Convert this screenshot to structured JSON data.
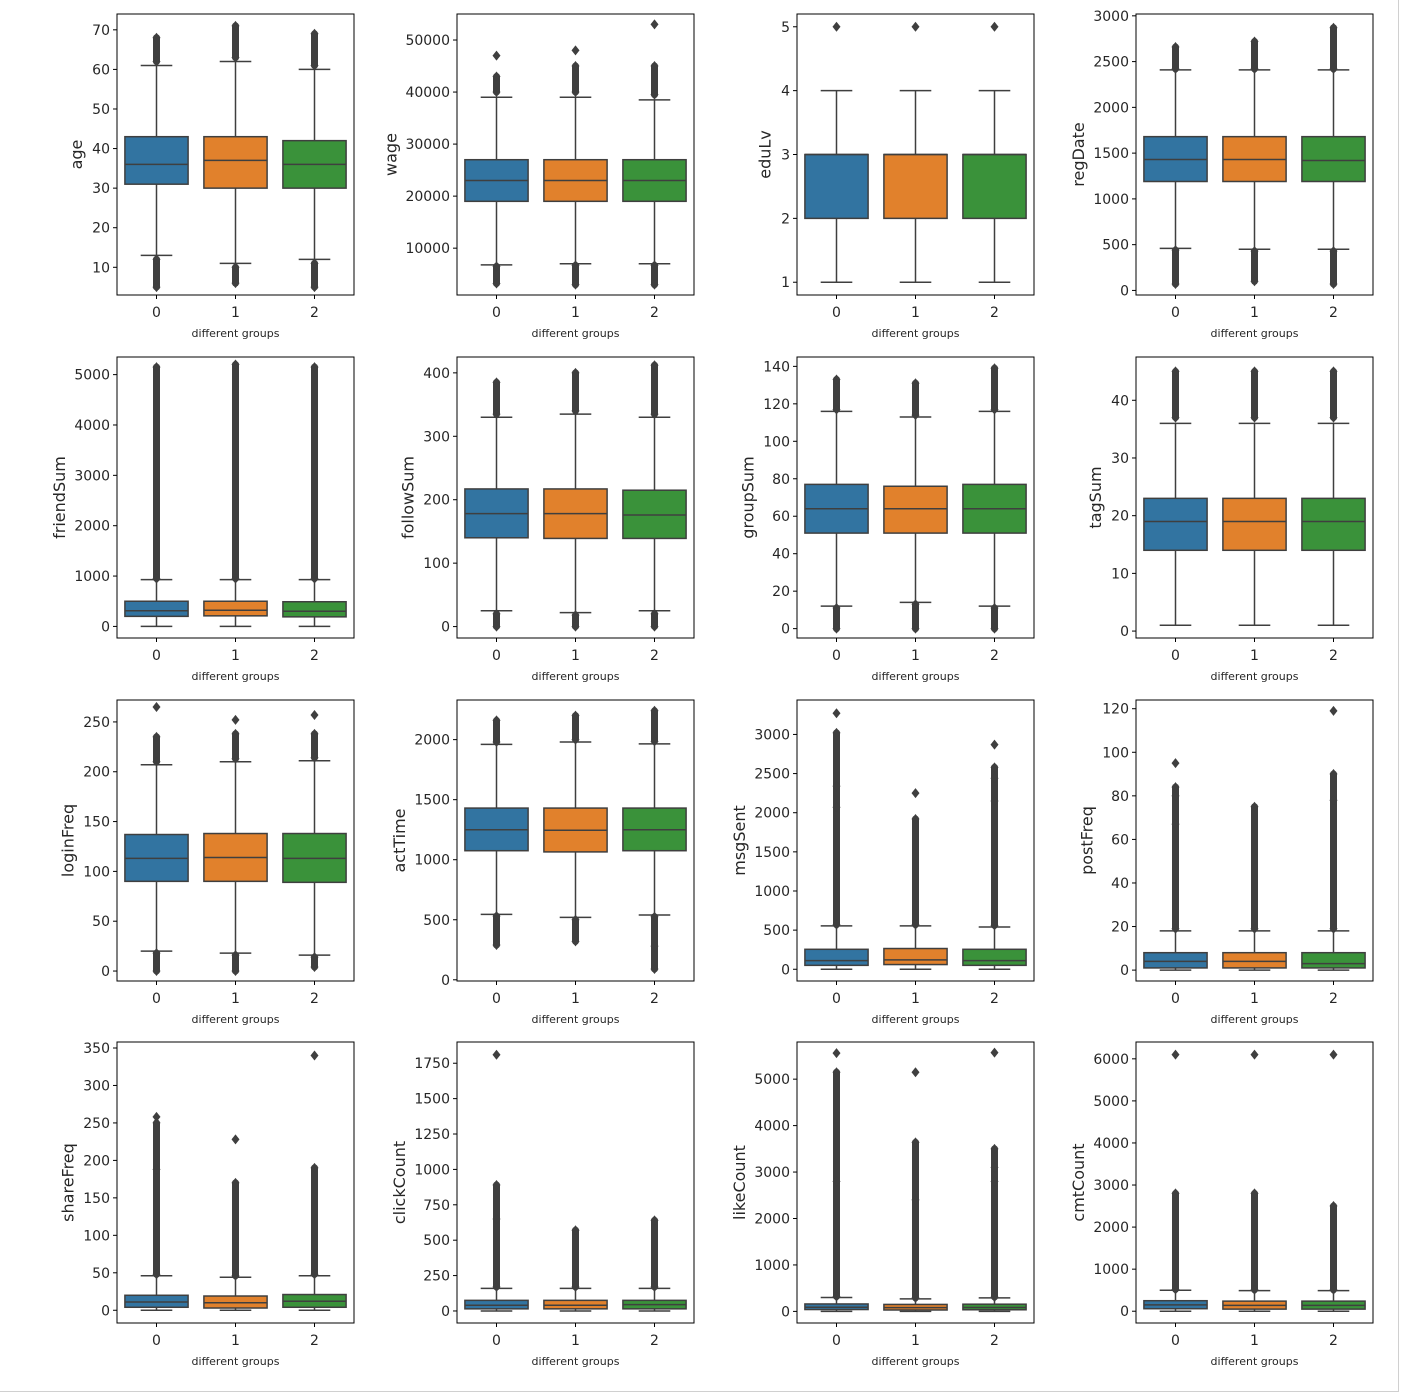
{
  "colors": {
    "group0": "#3274a1",
    "group1": "#e1812c",
    "group2": "#3a923a",
    "line": "#3f3f3f"
  },
  "chart_data": [
    {
      "type": "box",
      "ylabel": "age",
      "xlabel": "different groups",
      "categories": [
        "0",
        "1",
        "2"
      ],
      "ylim": [
        3,
        74
      ],
      "yticks": [
        10,
        20,
        30,
        40,
        50,
        60,
        70
      ],
      "boxes": [
        {
          "whislo": 13,
          "q1": 31,
          "med": 36,
          "q3": 43,
          "whishi": 61,
          "fliers_low": [
            5,
            12
          ],
          "fliers_high": [
            62,
            68
          ]
        },
        {
          "whislo": 11,
          "q1": 30,
          "med": 37,
          "q3": 43,
          "whishi": 62,
          "fliers_low": [
            6,
            10
          ],
          "fliers_high": [
            63,
            71
          ]
        },
        {
          "whislo": 12,
          "q1": 30,
          "med": 36,
          "q3": 42,
          "whishi": 60,
          "fliers_low": [
            5,
            11
          ],
          "fliers_high": [
            61,
            69
          ]
        }
      ]
    },
    {
      "type": "box",
      "ylabel": "wage",
      "xlabel": "different groups",
      "categories": [
        "0",
        "1",
        "2"
      ],
      "ylim": [
        1000,
        55000
      ],
      "yticks": [
        10000,
        20000,
        30000,
        40000,
        50000
      ],
      "boxes": [
        {
          "whislo": 6800,
          "q1": 19000,
          "med": 23000,
          "q3": 27000,
          "whishi": 39000,
          "fliers_low": [
            3200,
            6500
          ],
          "fliers_high": [
            40000,
            43000,
            47000
          ]
        },
        {
          "whislo": 7000,
          "q1": 19000,
          "med": 23000,
          "q3": 27000,
          "whishi": 39000,
          "fliers_low": [
            3000,
            6700
          ],
          "fliers_high": [
            40000,
            45000,
            48000
          ]
        },
        {
          "whislo": 7000,
          "q1": 19000,
          "med": 23000,
          "q3": 27000,
          "whishi": 38500,
          "fliers_low": [
            3000,
            6700
          ],
          "fliers_high": [
            39500,
            45000,
            53000
          ]
        }
      ]
    },
    {
      "type": "box",
      "ylabel": "eduLv",
      "xlabel": "different groups",
      "categories": [
        "0",
        "1",
        "2"
      ],
      "ylim": [
        0.8,
        5.2
      ],
      "yticks": [
        1,
        2,
        3,
        4,
        5
      ],
      "boxes": [
        {
          "whislo": 1,
          "q1": 2,
          "med": 3,
          "q3": 3,
          "whishi": 4,
          "fliers_low": [],
          "fliers_high": [
            5
          ]
        },
        {
          "whislo": 1,
          "q1": 2,
          "med": 3,
          "q3": 3,
          "whishi": 4,
          "fliers_low": [],
          "fliers_high": [
            5
          ]
        },
        {
          "whislo": 1,
          "q1": 2,
          "med": 3,
          "q3": 3,
          "whishi": 4,
          "fliers_low": [],
          "fliers_high": [
            5
          ]
        }
      ]
    },
    {
      "type": "box",
      "ylabel": "regDate",
      "xlabel": "different groups",
      "categories": [
        "0",
        "1",
        "2"
      ],
      "ylim": [
        -50,
        3020
      ],
      "yticks": [
        0,
        500,
        1000,
        1500,
        2000,
        2500,
        3000
      ],
      "boxes": [
        {
          "whislo": 460,
          "q1": 1190,
          "med": 1430,
          "q3": 1680,
          "whishi": 2410,
          "fliers_low": [
            70,
            440
          ],
          "fliers_high": [
            2420,
            2660
          ]
        },
        {
          "whislo": 450,
          "q1": 1190,
          "med": 1430,
          "q3": 1680,
          "whishi": 2410,
          "fliers_low": [
            100,
            430
          ],
          "fliers_high": [
            2420,
            2720
          ]
        },
        {
          "whislo": 450,
          "q1": 1190,
          "med": 1420,
          "q3": 1680,
          "whishi": 2410,
          "fliers_low": [
            70,
            430
          ],
          "fliers_high": [
            2420,
            2870
          ]
        }
      ]
    },
    {
      "type": "box",
      "ylabel": "friendSum",
      "xlabel": "different groups",
      "categories": [
        "0",
        "1",
        "2"
      ],
      "ylim": [
        -230,
        5350
      ],
      "yticks": [
        0,
        1000,
        2000,
        3000,
        4000,
        5000
      ],
      "boxes": [
        {
          "whislo": 0,
          "q1": 200,
          "med": 310,
          "q3": 500,
          "whishi": 930,
          "fliers_low": [],
          "fliers_high": [
            950,
            5150
          ]
        },
        {
          "whislo": 0,
          "q1": 210,
          "med": 320,
          "q3": 500,
          "whishi": 930,
          "fliers_low": [],
          "fliers_high": [
            950,
            5200
          ]
        },
        {
          "whislo": 0,
          "q1": 190,
          "med": 300,
          "q3": 490,
          "whishi": 930,
          "fliers_low": [],
          "fliers_high": [
            950,
            5150
          ]
        }
      ]
    },
    {
      "type": "box",
      "ylabel": "followSum",
      "xlabel": "different groups",
      "categories": [
        "0",
        "1",
        "2"
      ],
      "ylim": [
        -18,
        425
      ],
      "yticks": [
        0,
        100,
        200,
        300,
        400
      ],
      "boxes": [
        {
          "whislo": 25,
          "q1": 140,
          "med": 178,
          "q3": 217,
          "whishi": 330,
          "fliers_low": [
            0,
            20
          ],
          "fliers_high": [
            335,
            385
          ]
        },
        {
          "whislo": 22,
          "q1": 139,
          "med": 178,
          "q3": 217,
          "whishi": 335,
          "fliers_low": [
            0,
            18
          ],
          "fliers_high": [
            340,
            400
          ]
        },
        {
          "whislo": 25,
          "q1": 139,
          "med": 176,
          "q3": 215,
          "whishi": 330,
          "fliers_low": [
            0,
            20
          ],
          "fliers_high": [
            335,
            412
          ]
        }
      ]
    },
    {
      "type": "box",
      "ylabel": "groupSum",
      "xlabel": "different groups",
      "categories": [
        "0",
        "1",
        "2"
      ],
      "ylim": [
        -5,
        145
      ],
      "yticks": [
        0,
        20,
        40,
        60,
        80,
        100,
        120,
        140
      ],
      "boxes": [
        {
          "whislo": 12,
          "q1": 51,
          "med": 64,
          "q3": 77,
          "whishi": 116,
          "fliers_low": [
            0,
            11
          ],
          "fliers_high": [
            117,
            133
          ]
        },
        {
          "whislo": 14,
          "q1": 51,
          "med": 64,
          "q3": 76,
          "whishi": 113,
          "fliers_low": [
            0,
            13
          ],
          "fliers_high": [
            114,
            131
          ]
        },
        {
          "whislo": 12,
          "q1": 51,
          "med": 64,
          "q3": 77,
          "whishi": 116,
          "fliers_low": [
            0,
            11
          ],
          "fliers_high": [
            117,
            139
          ]
        }
      ]
    },
    {
      "type": "box",
      "ylabel": "tagSum",
      "xlabel": "different groups",
      "categories": [
        "0",
        "1",
        "2"
      ],
      "ylim": [
        -1.2,
        47.5
      ],
      "yticks": [
        0,
        10,
        20,
        30,
        40
      ],
      "boxes": [
        {
          "whislo": 1,
          "q1": 14,
          "med": 19,
          "q3": 23,
          "whishi": 36,
          "fliers_low": [],
          "fliers_high": [
            37,
            45
          ]
        },
        {
          "whislo": 1,
          "q1": 14,
          "med": 19,
          "q3": 23,
          "whishi": 36,
          "fliers_low": [],
          "fliers_high": [
            37,
            45
          ]
        },
        {
          "whislo": 1,
          "q1": 14,
          "med": 19,
          "q3": 23,
          "whishi": 36,
          "fliers_low": [],
          "fliers_high": [
            37,
            45
          ]
        }
      ]
    },
    {
      "type": "box",
      "ylabel": "loginFreq",
      "xlabel": "different groups",
      "categories": [
        "0",
        "1",
        "2"
      ],
      "ylim": [
        -10,
        272
      ],
      "yticks": [
        0,
        50,
        100,
        150,
        200,
        250
      ],
      "boxes": [
        {
          "whislo": 20,
          "q1": 90,
          "med": 113,
          "q3": 137,
          "whishi": 207,
          "fliers_low": [
            0,
            18
          ],
          "fliers_high": [
            210,
            235,
            265
          ]
        },
        {
          "whislo": 18,
          "q1": 90,
          "med": 114,
          "q3": 138,
          "whishi": 210,
          "fliers_low": [
            0,
            16
          ],
          "fliers_high": [
            213,
            238,
            252
          ]
        },
        {
          "whislo": 16,
          "q1": 89,
          "med": 113,
          "q3": 138,
          "whishi": 211,
          "fliers_low": [
            4,
            14
          ],
          "fliers_high": [
            214,
            238,
            257
          ]
        }
      ]
    },
    {
      "type": "box",
      "ylabel": "actTime",
      "xlabel": "different groups",
      "categories": [
        "0",
        "1",
        "2"
      ],
      "ylim": [
        -10,
        2330
      ],
      "yticks": [
        0,
        500,
        1000,
        1500,
        2000
      ],
      "boxes": [
        {
          "whislo": 545,
          "q1": 1075,
          "med": 1250,
          "q3": 1430,
          "whishi": 1960,
          "fliers_low": [
            290,
            530
          ],
          "fliers_high": [
            1980,
            2160
          ]
        },
        {
          "whislo": 520,
          "q1": 1065,
          "med": 1245,
          "q3": 1430,
          "whishi": 1980,
          "fliers_low": [
            320,
            500
          ],
          "fliers_high": [
            2000,
            2200
          ]
        },
        {
          "whislo": 540,
          "q1": 1075,
          "med": 1250,
          "q3": 1430,
          "whishi": 1965,
          "fliers_low": [
            90,
            280,
            525
          ],
          "fliers_high": [
            1985,
            2240
          ]
        }
      ]
    },
    {
      "type": "box",
      "ylabel": "msgSent",
      "xlabel": "different groups",
      "categories": [
        "0",
        "1",
        "2"
      ],
      "ylim": [
        -150,
        3440
      ],
      "yticks": [
        0,
        500,
        1000,
        1500,
        2000,
        2500,
        3000
      ],
      "boxes": [
        {
          "whislo": 0,
          "q1": 50,
          "med": 110,
          "q3": 255,
          "whishi": 555,
          "fliers_low": [],
          "fliers_high": [
            570,
            2070,
            2340,
            3020,
            3270
          ]
        },
        {
          "whislo": 0,
          "q1": 60,
          "med": 120,
          "q3": 265,
          "whishi": 555,
          "fliers_low": [],
          "fliers_high": [
            570,
            1920,
            2250
          ]
        },
        {
          "whislo": 0,
          "q1": 50,
          "med": 110,
          "q3": 255,
          "whishi": 540,
          "fliers_low": [],
          "fliers_high": [
            560,
            2150,
            2440,
            2580,
            2870
          ]
        }
      ]
    },
    {
      "type": "box",
      "ylabel": "postFreq",
      "xlabel": "different groups",
      "categories": [
        "0",
        "1",
        "2"
      ],
      "ylim": [
        -5,
        124
      ],
      "yticks": [
        0,
        20,
        40,
        60,
        80,
        100,
        120
      ],
      "boxes": [
        {
          "whislo": 0,
          "q1": 1,
          "med": 4,
          "q3": 8,
          "whishi": 18,
          "fliers_low": [],
          "fliers_high": [
            19,
            67,
            80,
            84,
            95
          ]
        },
        {
          "whislo": 0,
          "q1": 1,
          "med": 4,
          "q3": 8,
          "whishi": 18,
          "fliers_low": [],
          "fliers_high": [
            19,
            75
          ]
        },
        {
          "whislo": 0,
          "q1": 1,
          "med": 3,
          "q3": 8,
          "whishi": 18,
          "fliers_low": [],
          "fliers_high": [
            19,
            78,
            90,
            119
          ]
        }
      ]
    },
    {
      "type": "box",
      "ylabel": "shareFreq",
      "xlabel": "different groups",
      "categories": [
        "0",
        "1",
        "2"
      ],
      "ylim": [
        -17,
        358
      ],
      "yticks": [
        0,
        50,
        100,
        150,
        200,
        250,
        300,
        350
      ],
      "boxes": [
        {
          "whislo": 0,
          "q1": 4,
          "med": 11,
          "q3": 20,
          "whishi": 46,
          "fliers_low": [],
          "fliers_high": [
            48,
            188,
            250,
            258
          ]
        },
        {
          "whislo": 0,
          "q1": 3,
          "med": 10,
          "q3": 19,
          "whishi": 44,
          "fliers_low": [],
          "fliers_high": [
            46,
            170,
            228
          ]
        },
        {
          "whislo": 0,
          "q1": 4,
          "med": 12,
          "q3": 21,
          "whishi": 46,
          "fliers_low": [],
          "fliers_high": [
            48,
            190,
            340
          ]
        }
      ]
    },
    {
      "type": "box",
      "ylabel": "clickCount",
      "xlabel": "different groups",
      "categories": [
        "0",
        "1",
        "2"
      ],
      "ylim": [
        -85,
        1900
      ],
      "yticks": [
        0,
        250,
        500,
        750,
        1000,
        1250,
        1500,
        1750
      ],
      "boxes": [
        {
          "whislo": 0,
          "q1": 15,
          "med": 40,
          "q3": 75,
          "whishi": 160,
          "fliers_low": [],
          "fliers_high": [
            170,
            650,
            890,
            1810
          ]
        },
        {
          "whislo": 0,
          "q1": 15,
          "med": 40,
          "q3": 75,
          "whishi": 160,
          "fliers_low": [],
          "fliers_high": [
            170,
            570
          ]
        },
        {
          "whislo": 0,
          "q1": 15,
          "med": 45,
          "q3": 75,
          "whishi": 160,
          "fliers_low": [],
          "fliers_high": [
            170,
            640
          ]
        }
      ]
    },
    {
      "type": "box",
      "ylabel": "likeCount",
      "xlabel": "different groups",
      "categories": [
        "0",
        "1",
        "2"
      ],
      "ylim": [
        -250,
        5800
      ],
      "yticks": [
        0,
        1000,
        2000,
        3000,
        4000,
        5000
      ],
      "boxes": [
        {
          "whislo": 0,
          "q1": 40,
          "med": 90,
          "q3": 160,
          "whishi": 300,
          "fliers_low": [],
          "fliers_high": [
            320,
            2800,
            5150,
            5560
          ]
        },
        {
          "whislo": 0,
          "q1": 30,
          "med": 80,
          "q3": 150,
          "whishi": 270,
          "fliers_low": [],
          "fliers_high": [
            290,
            2400,
            3640,
            5150
          ]
        },
        {
          "whislo": 0,
          "q1": 35,
          "med": 85,
          "q3": 155,
          "whishi": 290,
          "fliers_low": [],
          "fliers_high": [
            310,
            2800,
            3100,
            3500,
            5570
          ]
        }
      ]
    },
    {
      "type": "box",
      "ylabel": "cmtCount",
      "xlabel": "different groups",
      "categories": [
        "0",
        "1",
        "2"
      ],
      "ylim": [
        -280,
        6400
      ],
      "yticks": [
        0,
        1000,
        2000,
        3000,
        4000,
        5000,
        6000
      ],
      "boxes": [
        {
          "whislo": 0,
          "q1": 60,
          "med": 150,
          "q3": 250,
          "whishi": 500,
          "fliers_low": [],
          "fliers_high": [
            520,
            2800,
            6100
          ]
        },
        {
          "whislo": 0,
          "q1": 50,
          "med": 140,
          "q3": 240,
          "whishi": 490,
          "fliers_low": [],
          "fliers_high": [
            510,
            2800,
            6100
          ]
        },
        {
          "whislo": 0,
          "q1": 50,
          "med": 140,
          "q3": 240,
          "whishi": 490,
          "fliers_low": [],
          "fliers_high": [
            510,
            2500,
            6100
          ]
        }
      ]
    }
  ]
}
